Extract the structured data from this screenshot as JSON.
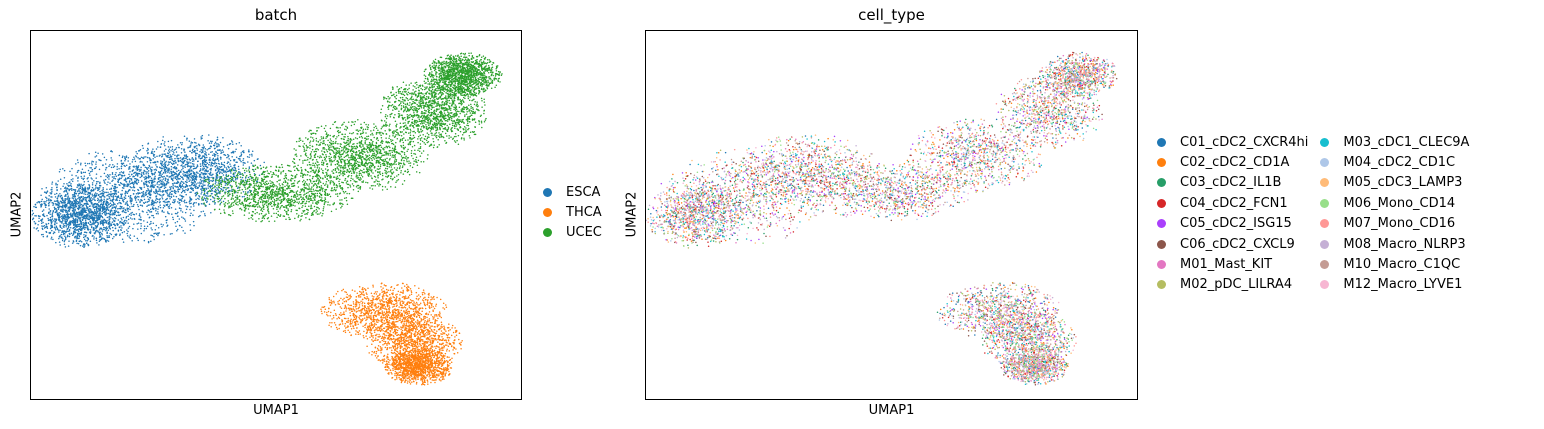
{
  "chart_data": [
    {
      "type": "scatter",
      "title": "batch",
      "xlabel": "UMAP1",
      "ylabel": "UMAP2",
      "xticks": [],
      "yticks": [],
      "grid": false,
      "legend_position": "right",
      "series": [
        {
          "name": "ESCA",
          "color": "#1f77b4",
          "count": 3800,
          "regions": [
            {
              "cx": 2.0,
              "cy": 5.5,
              "rx": 1.8,
              "ry": 1.3
            },
            {
              "cx": 3.3,
              "cy": 6.2,
              "rx": 1.5,
              "ry": 1.0
            },
            {
              "cx": 1.0,
              "cy": 5.0,
              "rx": 1.0,
              "ry": 0.9
            }
          ]
        },
        {
          "name": "THCA",
          "color": "#ff7f0e",
          "count": 3200,
          "regions": [
            {
              "cx": 7.2,
              "cy": 2.4,
              "rx": 1.3,
              "ry": 0.8
            },
            {
              "cx": 7.8,
              "cy": 1.6,
              "rx": 1.0,
              "ry": 0.8
            },
            {
              "cx": 7.9,
              "cy": 0.9,
              "rx": 0.7,
              "ry": 0.5
            }
          ]
        },
        {
          "name": "UCEC",
          "color": "#2ca02c",
          "count": 5200,
          "regions": [
            {
              "cx": 5.0,
              "cy": 5.6,
              "rx": 1.6,
              "ry": 0.8
            },
            {
              "cx": 6.7,
              "cy": 6.6,
              "rx": 1.4,
              "ry": 1.0
            },
            {
              "cx": 8.2,
              "cy": 7.8,
              "rx": 1.1,
              "ry": 1.0
            },
            {
              "cx": 8.8,
              "cy": 8.8,
              "rx": 0.8,
              "ry": 0.6
            }
          ]
        }
      ],
      "xlim": [
        0,
        10
      ],
      "ylim": [
        0,
        10
      ]
    },
    {
      "type": "scatter",
      "title": "cell_type",
      "xlabel": "UMAP1",
      "ylabel": "UMAP2",
      "xticks": [],
      "yticks": [],
      "grid": false,
      "legend_position": "right",
      "xlim": [
        0,
        10
      ],
      "ylim": [
        0,
        10
      ],
      "categories": [
        {
          "name": "C01_cDC2_CXCR4hi",
          "color": "#1f77b4"
        },
        {
          "name": "C02_cDC2_CD1A",
          "color": "#ff7f0e"
        },
        {
          "name": "C03_cDC2_IL1B",
          "color": "#279e68"
        },
        {
          "name": "C04_cDC2_FCN1",
          "color": "#d62728"
        },
        {
          "name": "C05_cDC2_ISG15",
          "color": "#aa40fc"
        },
        {
          "name": "C06_cDC2_CXCL9",
          "color": "#8c564b"
        },
        {
          "name": "M01_Mast_KIT",
          "color": "#e377c2"
        },
        {
          "name": "M02_pDC_LILRA4",
          "color": "#b5bd61"
        },
        {
          "name": "M03_cDC1_CLEC9A",
          "color": "#17becf"
        },
        {
          "name": "M04_cDC2_CD1C",
          "color": "#aec7e8"
        },
        {
          "name": "M05_cDC3_LAMP3",
          "color": "#ffbb78"
        },
        {
          "name": "M06_Mono_CD14",
          "color": "#98df8a"
        },
        {
          "name": "M07_Mono_CD16",
          "color": "#ff9896"
        },
        {
          "name": "M08_Macro_NLRP3",
          "color": "#c5b0d5"
        },
        {
          "name": "M10_Macro_C1QC",
          "color": "#c49c94"
        },
        {
          "name": "M12_Macro_LYVE1",
          "color": "#f7b6d2"
        }
      ]
    }
  ]
}
